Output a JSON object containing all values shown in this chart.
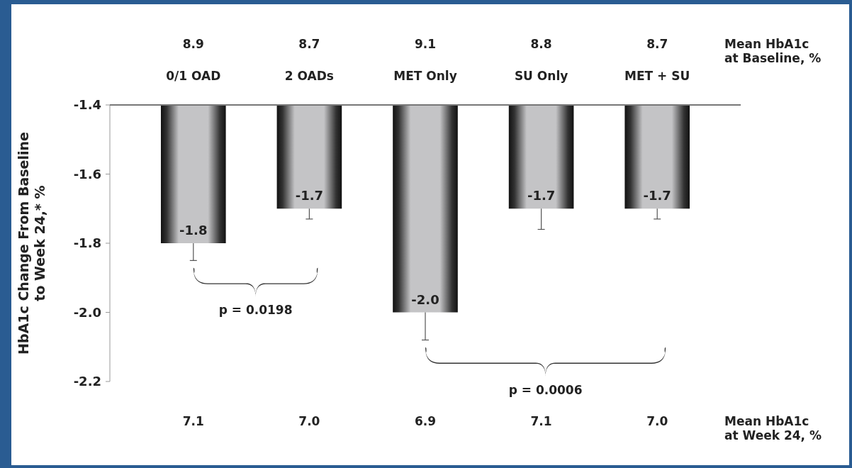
{
  "chart_data": {
    "type": "bar",
    "ylabel": "HbA1c  Change From Baseline\nto Week 24,* %",
    "categories": [
      "0/1 OAD",
      "2 OADs",
      "MET Only",
      "SU Only",
      "MET + SU"
    ],
    "values": [
      -1.8,
      -1.7,
      -2.0,
      -1.7,
      -1.7
    ],
    "errors": [
      [
        -1.85,
        -1.8
      ],
      [
        -1.73,
        -1.7
      ],
      [
        -2.08,
        -2.0
      ],
      [
        -1.76,
        -1.7
      ],
      [
        -1.73,
        -1.7
      ]
    ],
    "color": "#c4c4c6",
    "ylim": [
      -2.2,
      -1.4
    ],
    "yticks": [
      -2.2,
      {
        "value": -2,
        "label": "-2.0"
      },
      -1.8,
      -1.6,
      -1.4
    ],
    "value_labels": [
      "-1.8",
      "-1.7",
      "-2.0",
      "-1.7",
      "-1.7"
    ],
    "grid": false,
    "annotations": [
      "8.9",
      "8.7",
      "9.1",
      "8.8",
      "8.7",
      "Mean HbA1c\nat Baseline, %",
      "7.1",
      "7.0",
      "6.9",
      "7.1",
      "7.0",
      "Mean HbA1c\nat Week 24, %",
      "p = 0.0198",
      "p = 0.0006"
    ]
  }
}
